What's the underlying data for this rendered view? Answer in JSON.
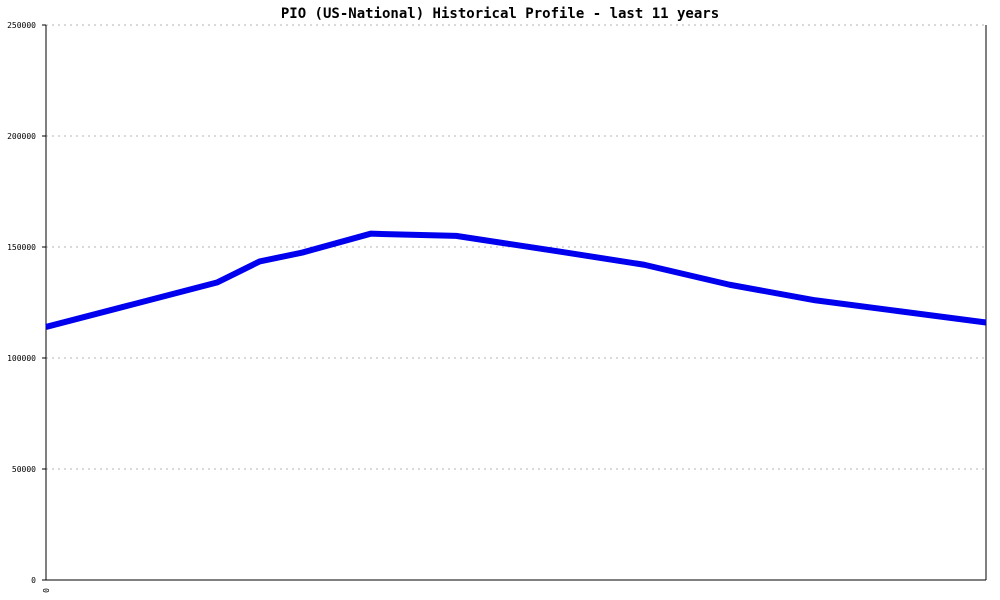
{
  "chart_data": {
    "type": "line",
    "title": "PIO (US-National) Historical Profile - last 11 years",
    "xlabel": "",
    "ylabel": "",
    "x_tick_labels": [
      "0"
    ],
    "y_ticks": [
      {
        "value": 0,
        "label": "0"
      },
      {
        "value": 50000,
        "label": "50000"
      },
      {
        "value": 100000,
        "label": "100000"
      },
      {
        "value": 150000,
        "label": "150000"
      },
      {
        "value": 200000,
        "label": "200000"
      },
      {
        "value": 250000,
        "label": "250000"
      }
    ],
    "ylim": [
      0,
      250000
    ],
    "xlim": [
      0,
      11
    ],
    "grid": true,
    "series": [
      {
        "color": "#0000ee",
        "x": [
          0,
          1,
          2,
          2.5,
          3,
          3.8,
          4.8,
          6,
          7,
          8,
          9,
          10,
          11
        ],
        "values": [
          114000,
          124000,
          134000,
          143500,
          147500,
          156000,
          155000,
          148000,
          142000,
          133000,
          126000,
          121000,
          116000
        ]
      }
    ]
  }
}
